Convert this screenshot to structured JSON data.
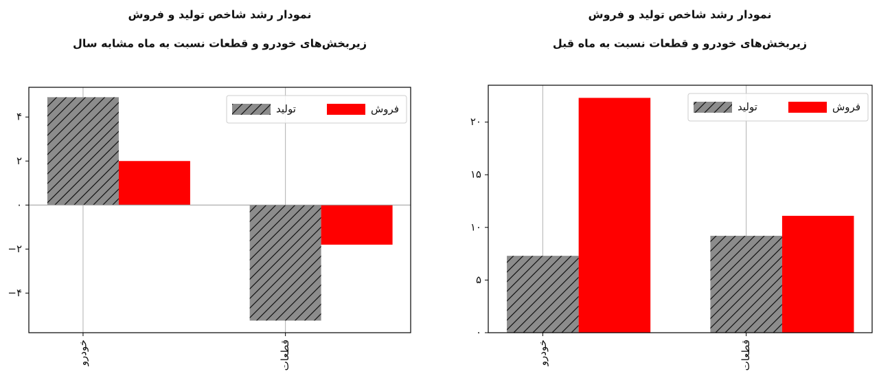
{
  "chart_data": [
    {
      "type": "bar",
      "title": "نمودار رشد شاخص تولید و فروش",
      "subtitle": "زیربخش‌های خودرو و قطعات نسبت به ماه مشابه سال",
      "categories": [
        "خودرو",
        "قطعات"
      ],
      "series": [
        {
          "name": "تولید",
          "color": "#8c8c8c",
          "hatch": true,
          "values": [
            4.9,
            -5.25
          ]
        },
        {
          "name": "فروش",
          "color": "#ff0000",
          "hatch": false,
          "values": [
            2.0,
            -1.8
          ]
        }
      ],
      "ylim": [
        -5.8,
        5.35
      ],
      "yticks": [
        {
          "value": 4,
          "label": "۴"
        },
        {
          "value": 2,
          "label": "۲"
        },
        {
          "value": 0,
          "label": "۰"
        },
        {
          "value": -2,
          "label": "−۲"
        },
        {
          "value": -4,
          "label": "−۴"
        }
      ],
      "grid": "x",
      "legend": "upper right"
    },
    {
      "type": "bar",
      "title": "نمودار رشد شاخص تولید و فروش",
      "subtitle": "زیربخش‌های خودرو و قطعات نسبت به ماه قبل",
      "categories": [
        "خودرو",
        "قطعات"
      ],
      "series": [
        {
          "name": "تولید",
          "color": "#8c8c8c",
          "hatch": true,
          "values": [
            7.3,
            9.2
          ]
        },
        {
          "name": "فروش",
          "color": "#ff0000",
          "hatch": false,
          "values": [
            22.3,
            11.1
          ]
        }
      ],
      "ylim": [
        0,
        23.5
      ],
      "yticks": [
        {
          "value": 0,
          "label": "۰"
        },
        {
          "value": 5,
          "label": "۵"
        },
        {
          "value": 10,
          "label": "۱۰"
        },
        {
          "value": 15,
          "label": "۱۵"
        },
        {
          "value": 20,
          "label": "۲۰"
        }
      ],
      "grid": "x",
      "legend": "upper right"
    }
  ]
}
